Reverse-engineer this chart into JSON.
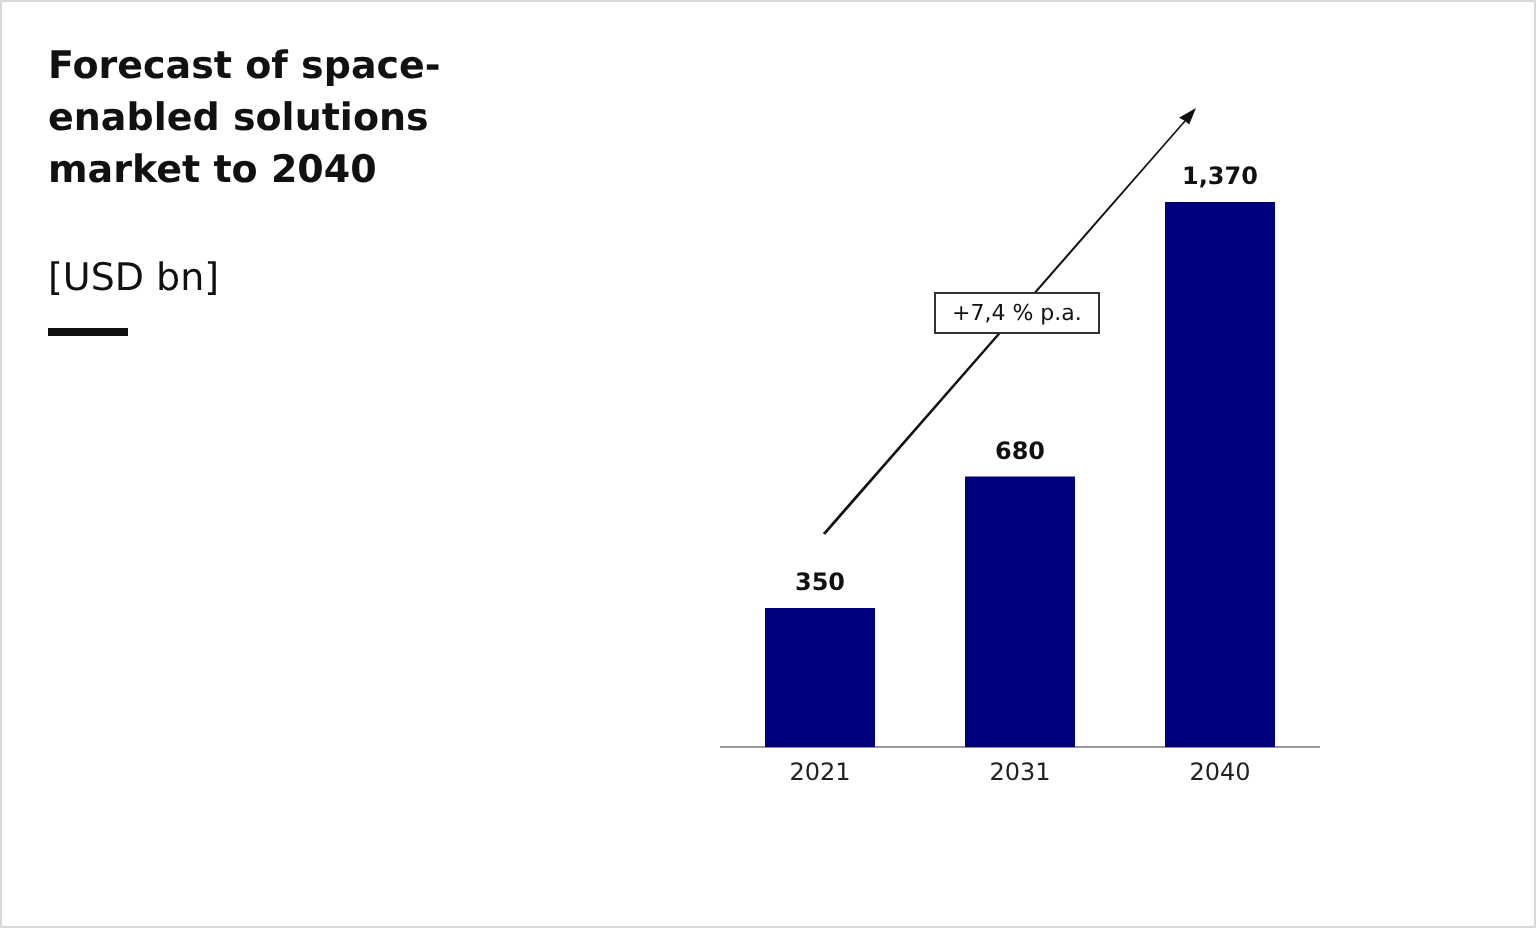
{
  "chart_data": {
    "type": "bar",
    "title": "Forecast of space-enabled solutions market to 2040",
    "subtitle": "[USD bn]",
    "categories": [
      "2021",
      "2031",
      "2040"
    ],
    "values": [
      350,
      680,
      1370
    ],
    "color": "#00007f",
    "value_labels": [
      "350",
      "680",
      "1,370"
    ],
    "grid": false,
    "legend": false,
    "annotations": [
      "+7,4 % p.a."
    ]
  }
}
